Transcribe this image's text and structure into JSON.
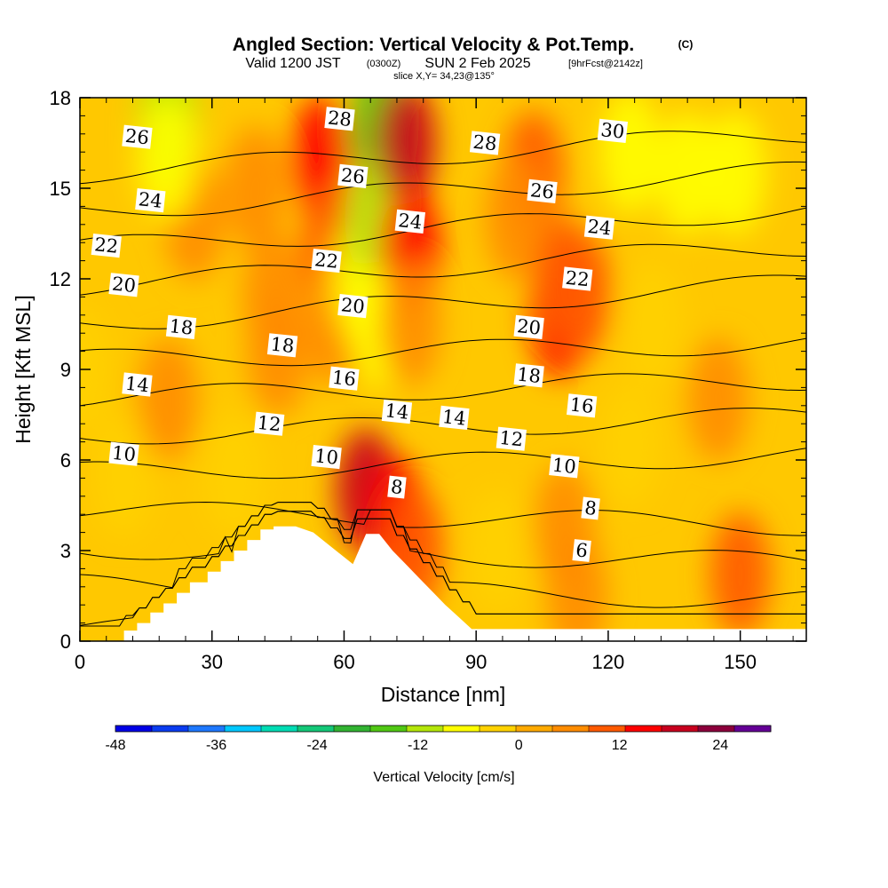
{
  "header": {
    "title": "Angled Section: Vertical Velocity & Pot.Temp.",
    "title_units": "(C)",
    "valid_prefix": "Valid 1200 JST",
    "valid_utc": "(0300Z)",
    "valid_date": "SUN 2 Feb 2025",
    "forecast": "[9hrFcst@2142z]",
    "slice": "slice X,Y= 34,23@135°"
  },
  "colors": {
    "terrain": "#ffffff",
    "contour": "#000000",
    "colorbar": [
      "#0000e6",
      "#0a3cf0",
      "#1e78ff",
      "#00c8ff",
      "#00dcb4",
      "#14c878",
      "#32b432",
      "#50c814",
      "#b4e60a",
      "#ffff00",
      "#ffd200",
      "#ffaa00",
      "#ff8c00",
      "#ff5a00",
      "#ff0000",
      "#c8001e",
      "#8c003c",
      "#640096"
    ]
  },
  "chart_data": {
    "type": "heatmap",
    "title": "Angled Section: Vertical Velocity & Pot.Temp.",
    "xlabel": "Distance [nm]",
    "ylabel": "Height [Kft MSL]",
    "xlim": [
      0,
      165
    ],
    "ylim": [
      0,
      18
    ],
    "x_ticks": [
      0,
      30,
      60,
      90,
      120,
      150
    ],
    "y_ticks": [
      0,
      3,
      6,
      9,
      12,
      15,
      18
    ],
    "colorbar": {
      "label": "Vertical Velocity [cm/s]",
      "min": -48,
      "max": 30,
      "ticks": [
        -48,
        -36,
        -24,
        -12,
        0,
        12,
        24
      ]
    },
    "terrain": {
      "x": [
        0,
        10,
        10,
        13,
        13,
        16,
        16,
        19,
        19,
        22,
        22,
        25,
        25,
        29,
        29,
        32,
        32,
        35,
        35,
        38,
        38,
        41,
        41,
        44,
        44,
        46,
        46,
        49,
        49,
        53,
        53,
        56,
        56,
        59,
        59,
        62,
        62,
        65,
        65,
        68,
        68,
        71,
        71,
        74,
        74,
        77,
        77,
        80,
        80,
        83,
        83,
        86,
        86,
        89,
        89,
        165
      ],
      "height": [
        0,
        0,
        0.35,
        0.35,
        0.6,
        0.6,
        0.95,
        0.95,
        1.25,
        1.25,
        1.6,
        1.6,
        1.95,
        1.95,
        2.3,
        2.3,
        2.65,
        2.65,
        3.0,
        3.0,
        3.35,
        3.35,
        3.7,
        3.7,
        3.8,
        3.8,
        3.8,
        3.8,
        3.8,
        3.6,
        3.6,
        3.25,
        3.25,
        2.9,
        2.9,
        2.55,
        2.55,
        3.55,
        3.55,
        3.55,
        3.55,
        3.0,
        3.0,
        2.55,
        2.55,
        2.1,
        2.1,
        1.65,
        1.65,
        1.2,
        1.2,
        0.8,
        0.8,
        0.4,
        0.4,
        0.4
      ]
    },
    "wind_cells": [
      {
        "x": 0,
        "y": 9,
        "w": -2
      },
      {
        "x": 40,
        "y": 15,
        "w": 6
      },
      {
        "x": 55,
        "y": 16,
        "w": 14
      },
      {
        "x": 57,
        "y": 13,
        "w": 10
      },
      {
        "x": 58,
        "y": 10.5,
        "w": 6
      },
      {
        "x": 64,
        "y": 12,
        "w": -8
      },
      {
        "x": 68,
        "y": 17,
        "w": -14
      },
      {
        "x": 67,
        "y": 14,
        "w": -10
      },
      {
        "x": 68,
        "y": 10.5,
        "w": -5
      },
      {
        "x": 65,
        "y": 5,
        "w": 18
      },
      {
        "x": 74,
        "y": 16.5,
        "w": 20
      },
      {
        "x": 75,
        "y": 13,
        "w": 16
      },
      {
        "x": 75,
        "y": 10.5,
        "w": 8
      },
      {
        "x": 72,
        "y": 4,
        "w": 14
      },
      {
        "x": 76,
        "y": 3,
        "w": 12
      },
      {
        "x": 44,
        "y": 11.5,
        "w": 8
      },
      {
        "x": 45,
        "y": 9.5,
        "w": 8
      },
      {
        "x": 26,
        "y": 14,
        "w": 6
      },
      {
        "x": 20,
        "y": 17.3,
        "w": -10
      },
      {
        "x": 20,
        "y": 16,
        "w": -6
      },
      {
        "x": 103,
        "y": 15.5,
        "w": 10
      },
      {
        "x": 99,
        "y": 14,
        "w": 8
      },
      {
        "x": 109,
        "y": 10.8,
        "w": 15
      },
      {
        "x": 110,
        "y": 12,
        "w": 12
      },
      {
        "x": 114,
        "y": 11.5,
        "w": 9
      },
      {
        "x": 125,
        "y": 16.2,
        "w": -5
      },
      {
        "x": 138,
        "y": 15.5,
        "w": -5
      },
      {
        "x": 149,
        "y": 15.5,
        "w": -5
      },
      {
        "x": 130,
        "y": 10.5,
        "w": -4
      },
      {
        "x": 145,
        "y": 8,
        "w": 6
      },
      {
        "x": 125,
        "y": 6.5,
        "w": -4
      },
      {
        "x": 150,
        "y": 2.2,
        "w": 10
      },
      {
        "x": 113,
        "y": 1.5,
        "w": 6
      },
      {
        "x": 95,
        "y": 3,
        "w": -4
      },
      {
        "x": 110,
        "y": 3.8,
        "w": 7
      },
      {
        "x": 35,
        "y": 5.5,
        "w": -4
      },
      {
        "x": 10,
        "y": 5.5,
        "w": -3
      },
      {
        "x": 20,
        "y": 8,
        "w": 5
      }
    ],
    "theta_contours": [
      {
        "value": 4,
        "label": false
      },
      {
        "value": 6,
        "label": true
      },
      {
        "value": 8,
        "label": true
      },
      {
        "value": 10,
        "label": true
      },
      {
        "value": 12,
        "label": true
      },
      {
        "value": 14,
        "label": true
      },
      {
        "value": 16,
        "label": true
      },
      {
        "value": 18,
        "label": true
      },
      {
        "value": 20,
        "label": true
      },
      {
        "value": 22,
        "label": true
      },
      {
        "value": 24,
        "label": true
      },
      {
        "value": 26,
        "label": true
      },
      {
        "value": 28,
        "label": true
      },
      {
        "value": 30,
        "label": true
      }
    ],
    "contour_labels": [
      {
        "text": "26",
        "x": 13,
        "y": 16.7
      },
      {
        "text": "24",
        "x": 16,
        "y": 14.6
      },
      {
        "text": "22",
        "x": 6,
        "y": 13.1
      },
      {
        "text": "20",
        "x": 10,
        "y": 11.8
      },
      {
        "text": "18",
        "x": 23,
        "y": 10.4
      },
      {
        "text": "14",
        "x": 13,
        "y": 8.5
      },
      {
        "text": "10",
        "x": 10,
        "y": 6.2
      },
      {
        "text": "28",
        "x": 59,
        "y": 17.3
      },
      {
        "text": "26",
        "x": 62,
        "y": 15.4
      },
      {
        "text": "22",
        "x": 56,
        "y": 12.6
      },
      {
        "text": "20",
        "x": 62,
        "y": 11.1
      },
      {
        "text": "18",
        "x": 46,
        "y": 9.8
      },
      {
        "text": "16",
        "x": 60,
        "y": 8.7
      },
      {
        "text": "12",
        "x": 43,
        "y": 7.2
      },
      {
        "text": "10",
        "x": 56,
        "y": 6.1
      },
      {
        "text": "8",
        "x": 72,
        "y": 5.1
      },
      {
        "text": "24",
        "x": 75,
        "y": 13.9
      },
      {
        "text": "14",
        "x": 72,
        "y": 7.6
      },
      {
        "text": "14",
        "x": 85,
        "y": 7.4
      },
      {
        "text": "28",
        "x": 92,
        "y": 16.5
      },
      {
        "text": "26",
        "x": 105,
        "y": 14.9
      },
      {
        "text": "30",
        "x": 121,
        "y": 16.9
      },
      {
        "text": "24",
        "x": 118,
        "y": 13.7
      },
      {
        "text": "22",
        "x": 113,
        "y": 12.0
      },
      {
        "text": "20",
        "x": 102,
        "y": 10.4
      },
      {
        "text": "18",
        "x": 102,
        "y": 8.8
      },
      {
        "text": "16",
        "x": 114,
        "y": 7.8
      },
      {
        "text": "12",
        "x": 98,
        "y": 6.7
      },
      {
        "text": "10",
        "x": 110,
        "y": 5.8
      },
      {
        "text": "8",
        "x": 116,
        "y": 4.4
      },
      {
        "text": "6",
        "x": 114,
        "y": 3.0
      }
    ]
  }
}
